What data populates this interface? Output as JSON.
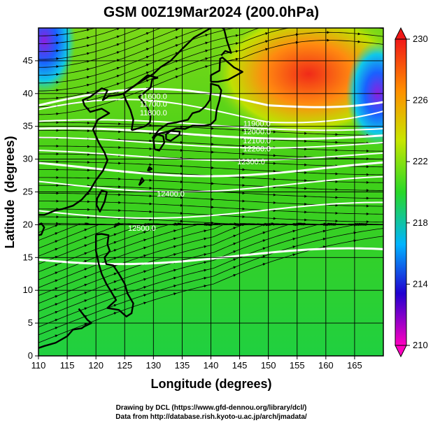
{
  "chart_data": {
    "type": "heatmap",
    "title": "GSM 00Z19Mar2024 (200.0hPa)",
    "xlabel": "Longitude (degrees)",
    "ylabel": "Latitude  (degrees)",
    "xlim": [
      110,
      170
    ],
    "ylim": [
      0,
      50
    ],
    "x_ticks": [
      "110",
      "115",
      "120",
      "125",
      "130",
      "135",
      "140",
      "145",
      "150",
      "155",
      "160",
      "165"
    ],
    "y_ticks": [
      "0",
      "5",
      "10",
      "15",
      "20",
      "25",
      "30",
      "35",
      "40",
      "45"
    ],
    "grid": true,
    "colorbar": {
      "range": [
        210,
        230
      ],
      "ticks": [
        "210",
        "214",
        "218",
        "222",
        "226",
        "230"
      ],
      "colors": [
        "#ff00c0",
        "#0000d0",
        "#00c8ff",
        "#28d828",
        "#c8e600",
        "#ff8c00",
        "#f02020"
      ]
    },
    "contour_labels": [
      "11600.0",
      "11700.0",
      "11800.0",
      "11900.0",
      "12000.0",
      "12100.0",
      "12200.0",
      "12300.0",
      "12400.0",
      "12500.0"
    ],
    "warm_core": {
      "lon": 157,
      "lat": 43,
      "value": 230
    },
    "cold_spots": [
      {
        "lon": 111,
        "lat": 48,
        "value": 212
      },
      {
        "lon": 169,
        "lat": 40,
        "value": 214
      }
    ]
  },
  "credits": {
    "line1": "Drawing by DCL (https://www.gfd-dennou.org/library/dcl/)",
    "line2": "Data from http://database.rish.kyoto-u.ac.jp/arch/jmadata/"
  }
}
